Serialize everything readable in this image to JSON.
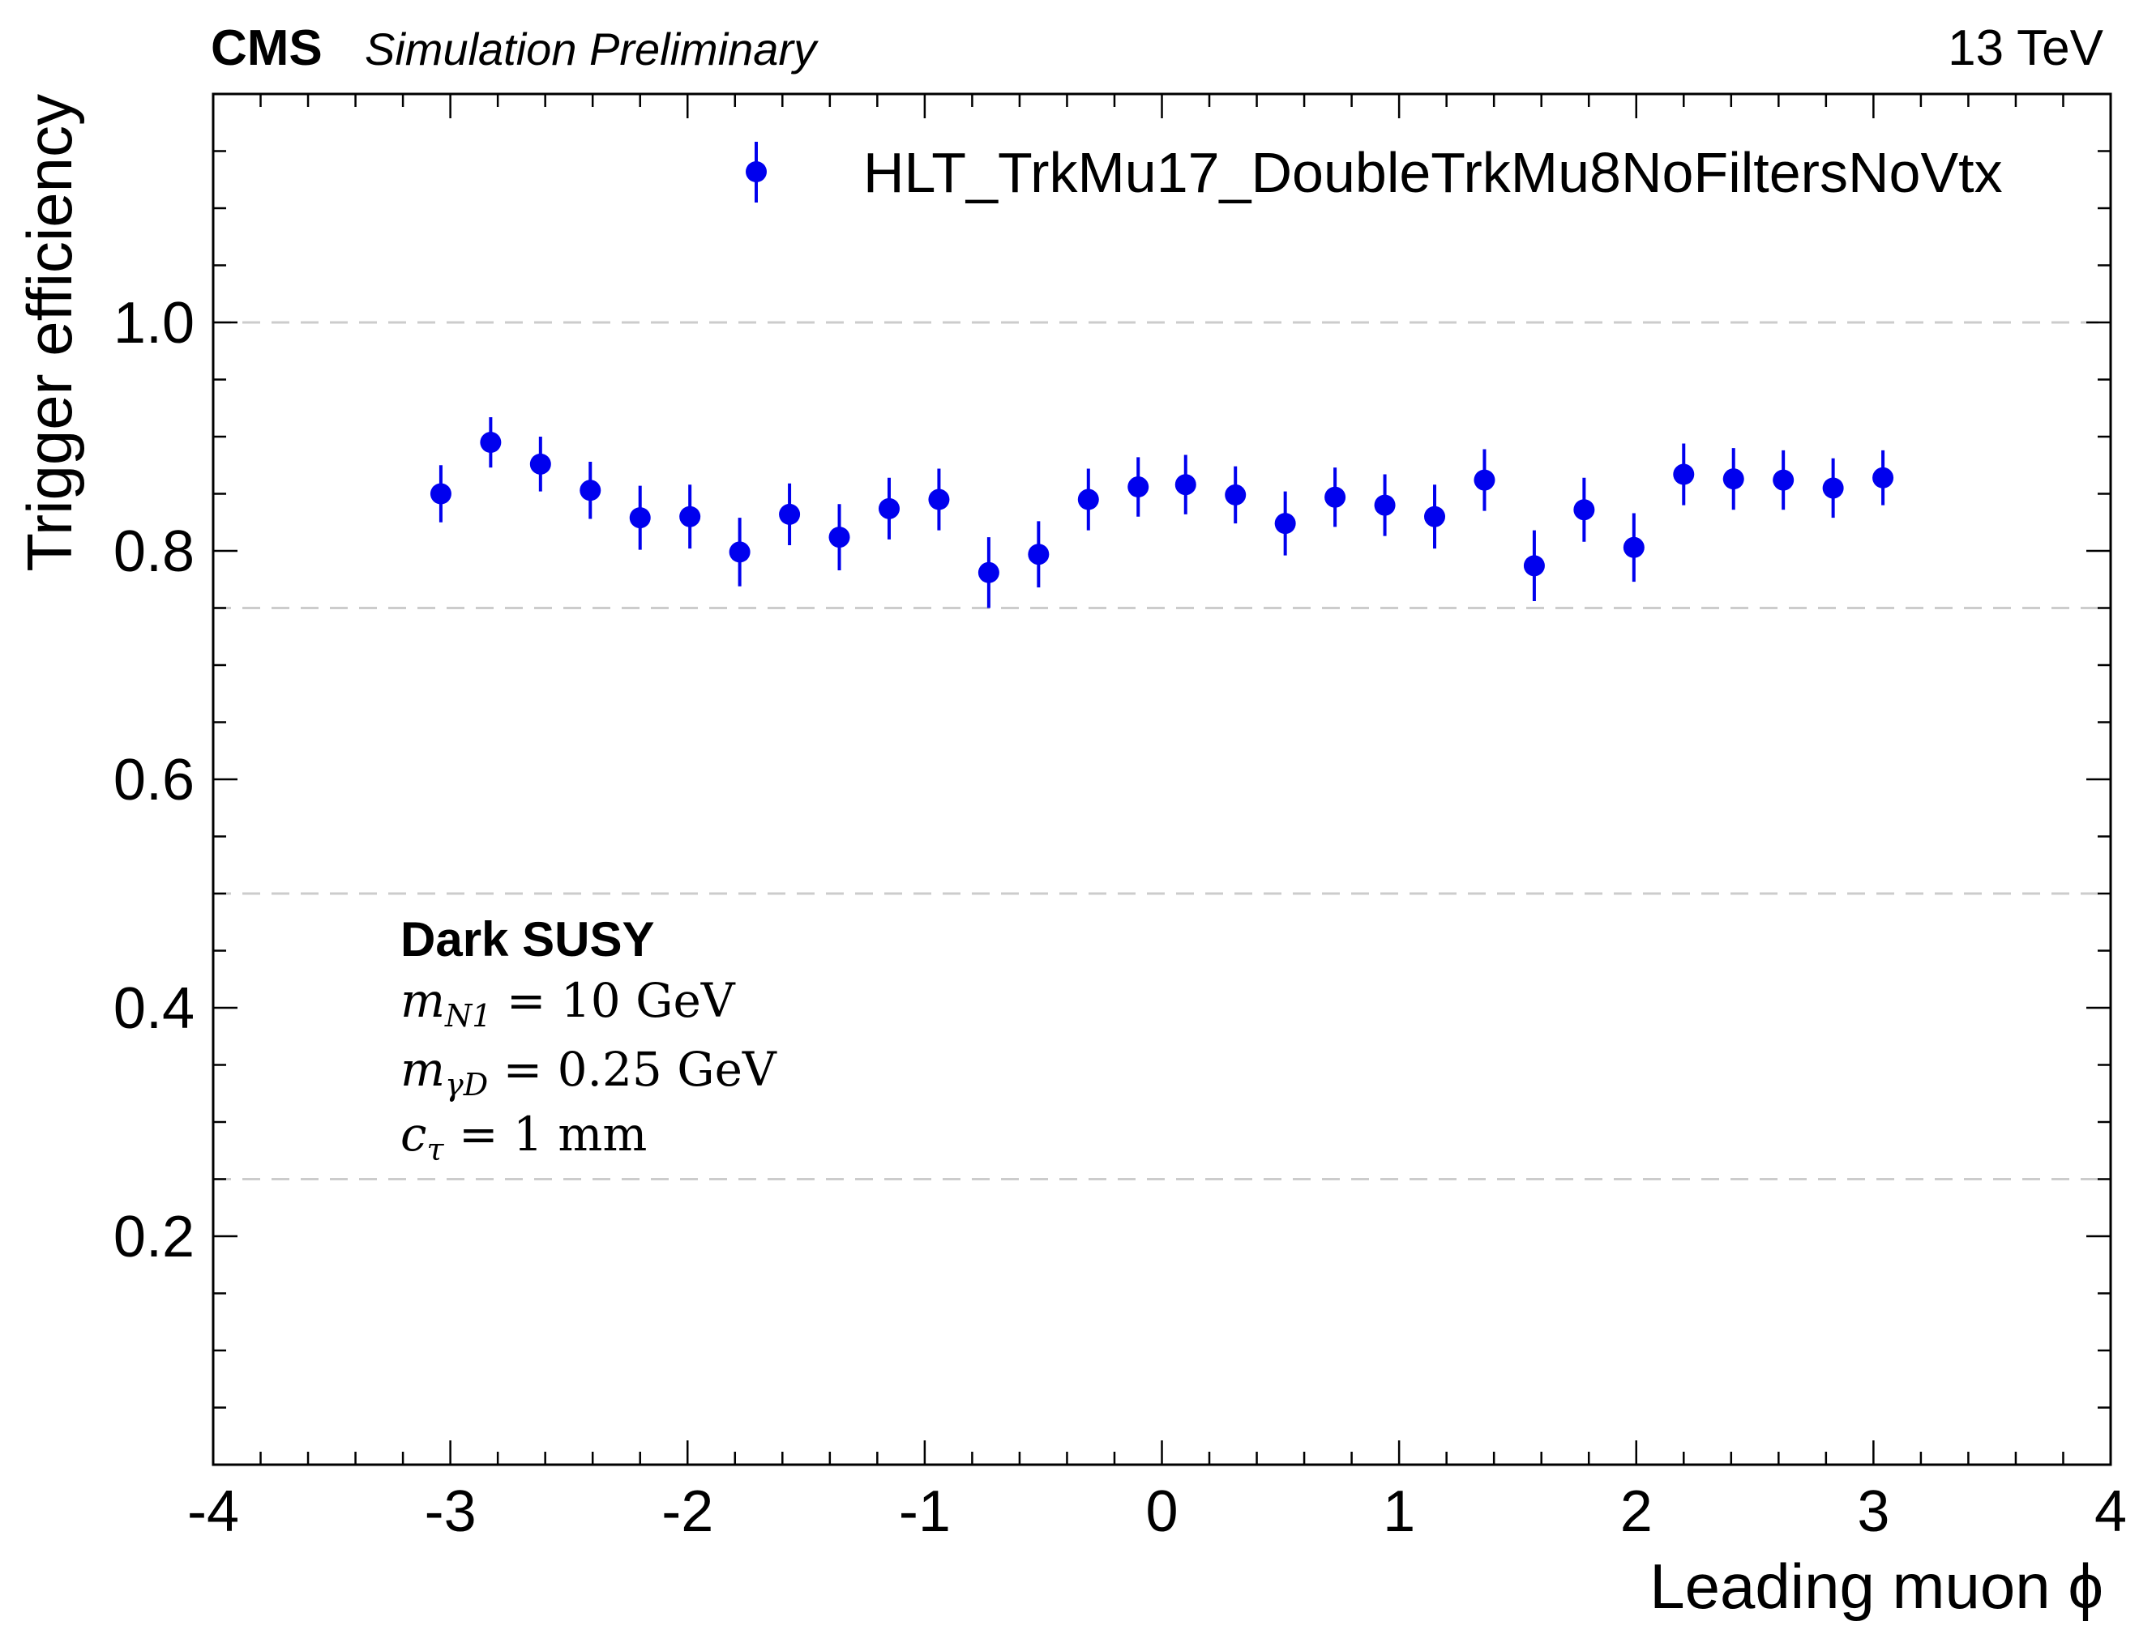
{
  "header": {
    "experiment": "CMS",
    "status": "Simulation Preliminary",
    "energy": "13 TeV"
  },
  "annotation": {
    "title": "Dark SUSY",
    "line1": {
      "sym": "m",
      "sub": "N1",
      "rest": " = 10 GeV"
    },
    "line2": {
      "sym": "m",
      "sub": "γD",
      "rest": " = 0.25 GeV"
    },
    "line3": {
      "sym": "c",
      "sub": "τ",
      "rest": " = 1 mm"
    }
  },
  "chart_data": {
    "type": "scatter",
    "xlabel": "Leading muon ϕ",
    "ylabel": "Trigger efficiency",
    "xlim": [
      -4,
      4
    ],
    "ylim": [
      0,
      1.2
    ],
    "xticks": [
      -4,
      -3,
      -2,
      -1,
      0,
      1,
      2,
      3,
      4
    ],
    "xtick_labels": [
      "-4",
      "-3",
      "-2",
      "-1",
      "0",
      "1",
      "2",
      "3",
      "4"
    ],
    "yticks": [
      0.2,
      0.4,
      0.6,
      0.8,
      1.0
    ],
    "ytick_labels": [
      "0.2",
      "0.4",
      "0.6",
      "0.8",
      "1.0"
    ],
    "grid": {
      "axis": "y",
      "style": "dashed",
      "values": [
        0.25,
        0.5,
        0.75,
        1.0
      ]
    },
    "legend": "top-right",
    "colors": {
      "series": "#0000ee",
      "grid": "#cccccc",
      "axes": "#000000"
    },
    "series": [
      {
        "name": "HLT_TrkMu17_DoubleTrkMu8NoFiltersNoVtx",
        "x": [
          -3.04,
          -2.83,
          -2.62,
          -2.41,
          -2.2,
          -1.99,
          -1.78,
          -1.57,
          -1.36,
          -1.15,
          -0.94,
          -0.73,
          -0.52,
          -0.31,
          -0.1,
          0.1,
          0.31,
          0.52,
          0.73,
          0.94,
          1.15,
          1.36,
          1.57,
          1.78,
          1.99,
          2.2,
          2.41,
          2.62,
          2.83,
          3.04
        ],
        "y": [
          0.85,
          0.895,
          0.876,
          0.853,
          0.829,
          0.83,
          0.799,
          0.832,
          0.812,
          0.837,
          0.845,
          0.781,
          0.797,
          0.845,
          0.856,
          0.858,
          0.849,
          0.824,
          0.847,
          0.84,
          0.83,
          0.862,
          0.787,
          0.836,
          0.803,
          0.867,
          0.863,
          0.862,
          0.855,
          0.864
        ],
        "yerr": [
          0.025,
          0.022,
          0.024,
          0.025,
          0.028,
          0.028,
          0.03,
          0.027,
          0.029,
          0.027,
          0.027,
          0.031,
          0.029,
          0.027,
          0.026,
          0.026,
          0.025,
          0.028,
          0.026,
          0.027,
          0.028,
          0.027,
          0.031,
          0.028,
          0.03,
          0.027,
          0.027,
          0.026,
          0.026,
          0.024
        ]
      }
    ]
  }
}
